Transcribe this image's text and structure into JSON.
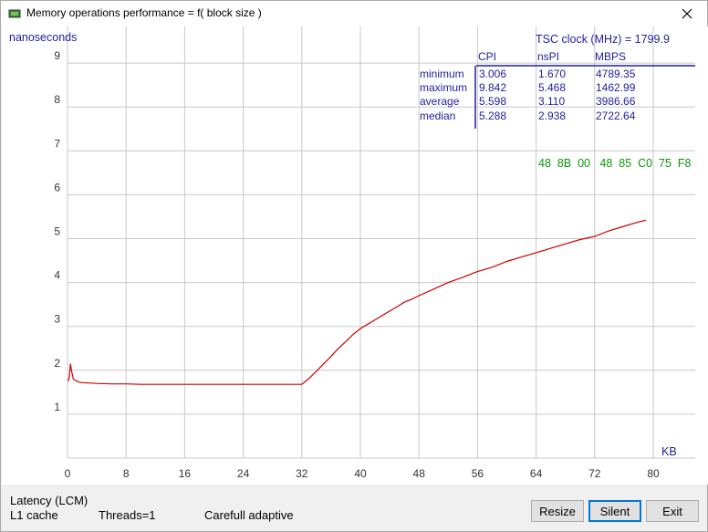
{
  "window": {
    "title": "Memory operations performance = f( block size )",
    "colors": {
      "plot_bg": "#ffffff",
      "grid": "#c8c8c8",
      "line": "#cc0000",
      "text_blue": "#1e1ea0",
      "text_green": "#0a9a0a"
    }
  },
  "chart_data": {
    "type": "line",
    "ylabel": "nanoseconds",
    "xlabel": "KB",
    "xlim": [
      0,
      80
    ],
    "ylim": [
      0,
      10
    ],
    "x_ticks": [
      "0",
      "8",
      "16",
      "24",
      "32",
      "40",
      "48",
      "56",
      "64",
      "72",
      "80"
    ],
    "y_ticks": [
      "1",
      "2",
      "3",
      "4",
      "5",
      "6",
      "7",
      "8",
      "9"
    ],
    "series": [
      {
        "x": [
          0.1,
          0.25,
          0.4,
          0.6,
          0.8,
          1.0,
          1.3,
          1.6,
          2,
          3,
          4,
          6,
          8,
          10,
          12,
          14,
          16,
          18,
          20,
          22,
          24,
          26,
          28,
          30,
          31,
          32,
          33,
          34,
          35,
          36,
          37,
          38,
          39,
          40,
          41,
          42,
          43,
          44,
          45,
          46,
          47,
          48,
          50,
          52,
          54,
          56,
          58,
          60,
          62,
          64,
          66,
          68,
          70,
          72,
          74,
          76,
          78,
          79
        ],
        "y": [
          1.75,
          1.85,
          2.15,
          1.95,
          1.8,
          1.78,
          1.75,
          1.73,
          1.72,
          1.71,
          1.7,
          1.69,
          1.69,
          1.68,
          1.68,
          1.68,
          1.68,
          1.68,
          1.68,
          1.68,
          1.68,
          1.68,
          1.68,
          1.68,
          1.68,
          1.68,
          1.82,
          1.98,
          2.15,
          2.32,
          2.5,
          2.65,
          2.82,
          2.95,
          3.05,
          3.15,
          3.25,
          3.35,
          3.45,
          3.55,
          3.62,
          3.7,
          3.85,
          4.0,
          4.12,
          4.25,
          4.35,
          4.48,
          4.58,
          4.68,
          4.78,
          4.88,
          4.98,
          5.05,
          5.18,
          5.28,
          5.38,
          5.42
        ]
      }
    ]
  },
  "stats": {
    "tsc_label": "TSC clock (MHz)  = 1799.9",
    "headers": [
      "CPI",
      "nsPI",
      "MBPS"
    ],
    "rows": [
      {
        "label": "minimum",
        "values": [
          "3.006",
          "1.670",
          "4789.35"
        ]
      },
      {
        "label": "maximum",
        "values": [
          "9.842",
          "5.468",
          "1462.99"
        ]
      },
      {
        "label": "average",
        "values": [
          "5.598",
          "3.110",
          "3986.66"
        ]
      },
      {
        "label": "median",
        "values": [
          "5.288",
          "2.938",
          "2722.64"
        ]
      }
    ],
    "opcodes": "48  8B  00   48  85  C0  75  F8"
  },
  "status": {
    "line1": "Latency (LCM)",
    "cache": "L1 cache",
    "threads": "Threads=1",
    "mode": "Carefull adaptive"
  },
  "buttons": {
    "resize": "Resize",
    "silent": "Silent",
    "exit": "Exit"
  }
}
